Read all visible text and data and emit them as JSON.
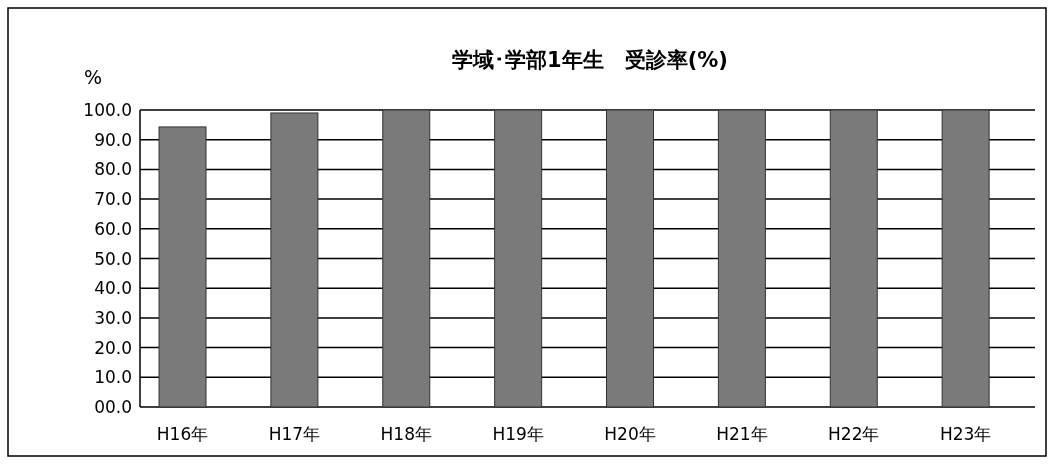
{
  "chart_data": {
    "type": "bar",
    "title": "学域･学部1年生　受診率(%)",
    "ylabel": "%",
    "categories": [
      "H16年",
      "H17年",
      "H18年",
      "H19年",
      "H20年",
      "H21年",
      "H22年",
      "H23年"
    ],
    "values": [
      94.3,
      99.0,
      100.0,
      100.0,
      100.0,
      100.0,
      100.0,
      100.0
    ],
    "color": "#7a7a7a",
    "ylim": [
      0,
      100
    ],
    "yticks": [
      {
        "value": 0,
        "label": "00.0"
      },
      {
        "value": 10,
        "label": "10.0"
      },
      {
        "value": 20,
        "label": "20.0"
      },
      {
        "value": 30,
        "label": "30.0"
      },
      {
        "value": 40,
        "label": "40.0"
      },
      {
        "value": 50,
        "label": "50.0"
      },
      {
        "value": 60,
        "label": "60.0"
      },
      {
        "value": 70,
        "label": "70.0"
      },
      {
        "value": 80,
        "label": "80.0"
      },
      {
        "value": 90,
        "label": "90.0"
      },
      {
        "value": 100,
        "label": "100.0"
      }
    ],
    "grid": "y"
  }
}
